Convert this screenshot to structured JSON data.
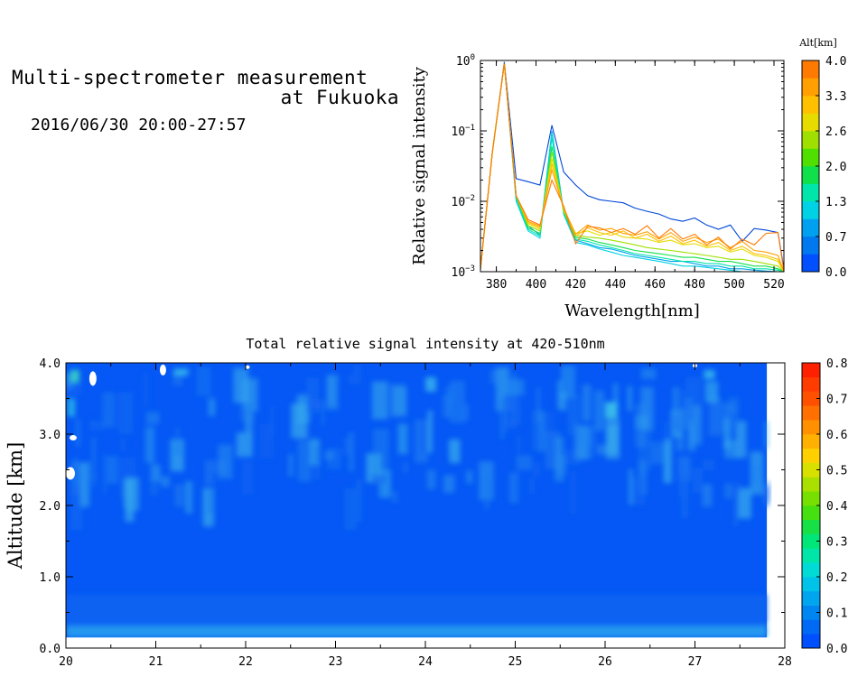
{
  "header": {
    "title_line1": "Multi-spectrometer measurement",
    "title_line2": "at Fukuoka",
    "subtitle": "2016/06/30 20:00-27:57"
  },
  "chart_data": [
    {
      "type": "line",
      "title": "",
      "xlabel": "Wavelength[nm]",
      "ylabel": "Relative signal intensity",
      "xlim": [
        372,
        525
      ],
      "ylim": [
        0.001,
        1
      ],
      "yscale": "log",
      "xticks": [
        380,
        400,
        420,
        440,
        460,
        480,
        500,
        520
      ],
      "ytick_bases": [
        "10",
        "10",
        "10",
        "10"
      ],
      "ytick_exps": [
        "0",
        "−1",
        "−2",
        "−3"
      ],
      "colorbar": {
        "title": "Alt[km]",
        "ticks": [
          "4.0",
          "3.3",
          "2.6",
          "2.0",
          "1.3",
          "0.7",
          "0.0"
        ],
        "colors": [
          "#0050ff",
          "#0078f0",
          "#00a0f0",
          "#00d2e6",
          "#00e6aa",
          "#10e04a",
          "#50e000",
          "#a0e000",
          "#e6dc00",
          "#ffc000",
          "#ffa000",
          "#ff7a00"
        ]
      },
      "x": [
        372,
        378,
        384,
        390,
        396,
        402,
        408,
        414,
        420,
        426,
        432,
        438,
        444,
        450,
        456,
        462,
        468,
        474,
        480,
        486,
        492,
        498,
        504,
        510,
        516,
        522,
        525
      ],
      "series": [
        {
          "color": "#0046d8",
          "values": [
            0.0011,
            0.05,
            0.95,
            0.021,
            0.019,
            0.017,
            0.12,
            0.026,
            0.017,
            0.012,
            0.0105,
            0.01,
            0.0095,
            0.008,
            0.0072,
            0.0066,
            0.0056,
            0.0052,
            0.0058,
            0.0046,
            0.004,
            0.0046,
            0.0027,
            0.0041,
            0.0039,
            0.0036,
            0.0011
          ]
        },
        {
          "color": "#00a0f0",
          "values": [
            0.0011,
            0.05,
            0.9,
            0.011,
            0.0045,
            0.0033,
            0.1,
            0.007,
            0.0028,
            0.0025,
            0.0022,
            0.0021,
            0.0019,
            0.0017,
            0.0016,
            0.0015,
            0.0014,
            0.0014,
            0.0013,
            0.0012,
            0.0012,
            0.0011,
            0.0011,
            0.00105,
            0.00102,
            0.001,
            0.001
          ]
        },
        {
          "color": "#00d2e6",
          "values": [
            0.0011,
            0.05,
            0.9,
            0.01,
            0.0038,
            0.003,
            0.095,
            0.0065,
            0.0026,
            0.0024,
            0.0021,
            0.0019,
            0.0017,
            0.0016,
            0.0015,
            0.0014,
            0.0013,
            0.0012,
            0.0012,
            0.00115,
            0.0011,
            0.00105,
            0.001,
            0.001,
            0.001,
            0.001,
            0.001
          ]
        },
        {
          "color": "#00e6aa",
          "values": [
            0.0011,
            0.05,
            0.9,
            0.011,
            0.004,
            0.0032,
            0.08,
            0.0068,
            0.0029,
            0.0027,
            0.0024,
            0.0022,
            0.002,
            0.0018,
            0.0017,
            0.0016,
            0.0015,
            0.0014,
            0.0014,
            0.0013,
            0.0013,
            0.0012,
            0.0012,
            0.0011,
            0.0011,
            0.00105,
            0.001
          ]
        },
        {
          "color": "#10e04a",
          "values": [
            0.0011,
            0.05,
            0.9,
            0.012,
            0.0042,
            0.0035,
            0.06,
            0.007,
            0.0031,
            0.0029,
            0.0026,
            0.0024,
            0.0022,
            0.002,
            0.0019,
            0.0018,
            0.0017,
            0.0016,
            0.0016,
            0.0015,
            0.0014,
            0.0014,
            0.0013,
            0.0012,
            0.0012,
            0.0011,
            0.001
          ]
        },
        {
          "color": "#a0e000",
          "values": [
            0.0011,
            0.05,
            0.9,
            0.012,
            0.0045,
            0.0038,
            0.05,
            0.0072,
            0.0033,
            0.0031,
            0.003,
            0.0028,
            0.0026,
            0.0024,
            0.0022,
            0.0021,
            0.002,
            0.0019,
            0.0018,
            0.0017,
            0.0016,
            0.0015,
            0.0015,
            0.0014,
            0.0013,
            0.0012,
            0.001
          ]
        },
        {
          "color": "#e6dc00",
          "values": [
            0.0011,
            0.05,
            0.9,
            0.012,
            0.0048,
            0.004,
            0.04,
            0.0075,
            0.0035,
            0.0038,
            0.0033,
            0.0036,
            0.0031,
            0.003,
            0.0029,
            0.0026,
            0.0028,
            0.0024,
            0.0025,
            0.0022,
            0.0023,
            0.0019,
            0.0021,
            0.0017,
            0.0016,
            0.0014,
            0.001
          ]
        },
        {
          "color": "#ffc000",
          "values": [
            0.0011,
            0.05,
            0.9,
            0.012,
            0.005,
            0.0042,
            0.034,
            0.0078,
            0.0032,
            0.0042,
            0.0036,
            0.0033,
            0.0038,
            0.003,
            0.0034,
            0.0027,
            0.0032,
            0.0025,
            0.0028,
            0.0023,
            0.0026,
            0.002,
            0.0023,
            0.0018,
            0.0017,
            0.0015,
            0.001
          ]
        },
        {
          "color": "#ffa000",
          "values": [
            0.0011,
            0.05,
            0.9,
            0.012,
            0.0052,
            0.0044,
            0.028,
            0.008,
            0.0034,
            0.0046,
            0.0039,
            0.0041,
            0.0035,
            0.0033,
            0.0037,
            0.0029,
            0.0036,
            0.0027,
            0.0031,
            0.0026,
            0.0029,
            0.0022,
            0.0027,
            0.002,
            0.0019,
            0.0017,
            0.001
          ]
        },
        {
          "color": "#ff7a00",
          "values": [
            0.0011,
            0.05,
            0.9,
            0.012,
            0.0055,
            0.0046,
            0.02,
            0.0085,
            0.0025,
            0.0044,
            0.0042,
            0.0036,
            0.0041,
            0.0034,
            0.0045,
            0.003,
            0.0041,
            0.0029,
            0.0034,
            0.0024,
            0.0031,
            0.0021,
            0.0029,
            0.0024,
            0.0035,
            0.0036,
            0.001
          ]
        }
      ]
    },
    {
      "type": "heatmap",
      "title": "Total relative signal intensity at 420-510nm",
      "xlabel": "",
      "ylabel": "Altitude [km]",
      "xlim": [
        20,
        28
      ],
      "ylim": [
        0,
        4
      ],
      "xticks": [
        "20",
        "21",
        "22",
        "23",
        "24",
        "25",
        "26",
        "27",
        "28"
      ],
      "yticks": [
        "0.0",
        "1.0",
        "2.0",
        "3.0",
        "4.0"
      ],
      "data_x_range": [
        20,
        27.8
      ],
      "data_y_range": [
        0.15,
        4.0
      ],
      "colorbar": {
        "ticks": [
          "0.0",
          "0.1",
          "0.2",
          "0.3",
          "0.4",
          "0.5",
          "0.6",
          "0.7",
          "0.8"
        ],
        "colors": [
          "#0050ff",
          "#006af5",
          "#0086f0",
          "#00a5f0",
          "#00c3ea",
          "#00dbd6",
          "#00e6a8",
          "#00e678",
          "#16e046",
          "#46e010",
          "#78e000",
          "#aae000",
          "#d8e000",
          "#ffd000",
          "#ffb000",
          "#ff9000",
          "#ff7000",
          "#ff5000",
          "#ff3c00",
          "#ff2000"
        ]
      }
    }
  ]
}
